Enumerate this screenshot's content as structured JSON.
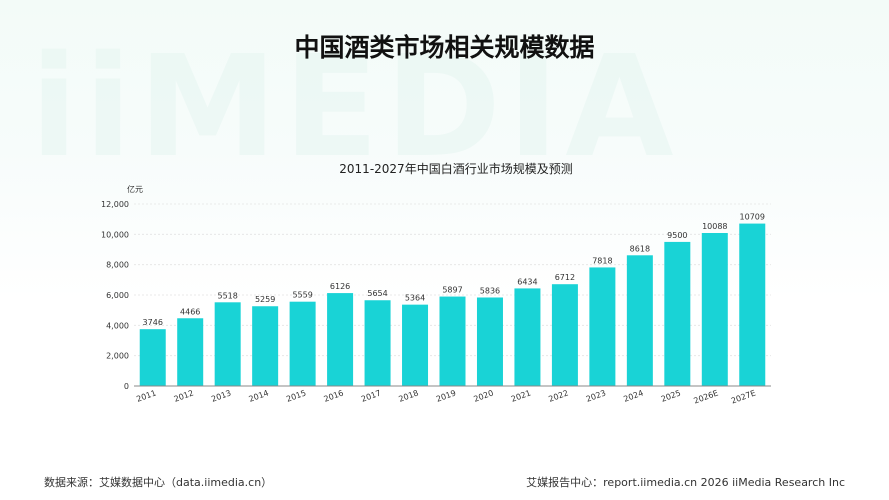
{
  "page": {
    "title": "中国酒类市场相关规模数据",
    "watermark": "iiMEDIA",
    "source": "数据来源：艾媒数据中心（data.iimedia.cn）",
    "report": "艾媒报告中心：report.iimedia.cn   2026 iiMedia Research Inc"
  },
  "chart_data": {
    "type": "bar",
    "title": "2011-2027年中国白酒行业市场规模及预测",
    "ylabel": "亿元",
    "xlabel": "",
    "ylim": [
      0,
      12000
    ],
    "yticks": [
      0,
      2000,
      4000,
      6000,
      8000,
      10000,
      12000
    ],
    "ytick_labels": [
      "0",
      "2,000",
      "4,000",
      "6,000",
      "8,000",
      "10,000",
      "12,000"
    ],
    "categories": [
      "2011",
      "2012",
      "2013",
      "2014",
      "2015",
      "2016",
      "2017",
      "2018",
      "2019",
      "2020",
      "2021",
      "2022",
      "2023",
      "2024",
      "2025",
      "2026E",
      "2027E"
    ],
    "values": [
      3746,
      4466,
      5518,
      5259,
      5559,
      6126,
      5654,
      5364,
      5897,
      5836,
      6434,
      6712,
      7818,
      8618,
      9500,
      10088,
      10709
    ],
    "bar_color": "#19d3d6",
    "grid": true,
    "legend": "none"
  }
}
